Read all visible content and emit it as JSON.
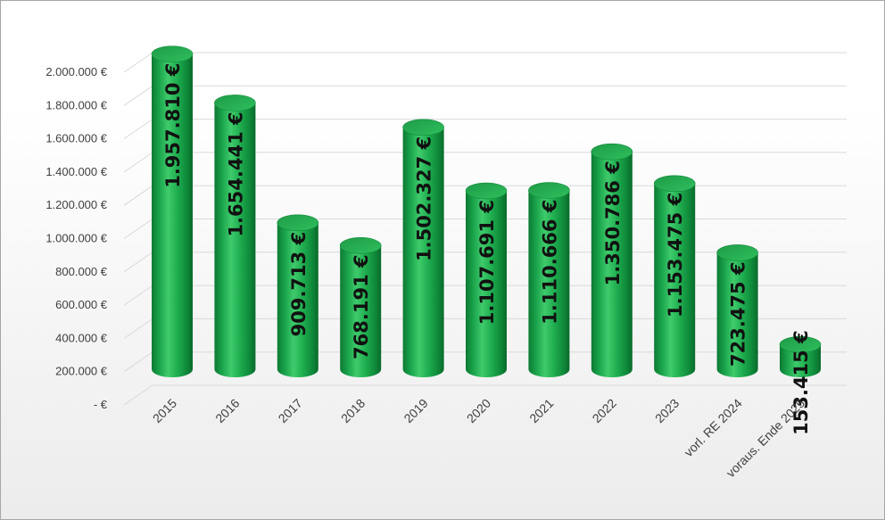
{
  "chart_data": {
    "type": "bar",
    "style": "3d-cylinder",
    "categories": [
      "2015",
      "2016",
      "2017",
      "2018",
      "2019",
      "2020",
      "2021",
      "2022",
      "2023",
      "vorl. RE 2024",
      "voraus. Ende 2025"
    ],
    "values": [
      1957810,
      1654441,
      909713,
      768191,
      1502327,
      1107691,
      1110666,
      1350786,
      1153475,
      723475,
      153415
    ],
    "value_labels": [
      "1.957.810 €",
      "1.654.441 €",
      "909.713 €",
      "768.191 €",
      "1.502.327 €",
      "1.107.691 €",
      "1.110.666 €",
      "1.350.786 €",
      "1.153.475 €",
      "723.475 €",
      "153.415 €"
    ],
    "y_ticks": [
      {
        "value": 0,
        "label": "-  €"
      },
      {
        "value": 200000,
        "label": "200.000 €"
      },
      {
        "value": 400000,
        "label": "400.000 €"
      },
      {
        "value": 600000,
        "label": "600.000 €"
      },
      {
        "value": 800000,
        "label": "800.000 €"
      },
      {
        "value": 1000000,
        "label": "1.000.000 €"
      },
      {
        "value": 1200000,
        "label": "1.200.000 €"
      },
      {
        "value": 1400000,
        "label": "1.400.000 €"
      },
      {
        "value": 1600000,
        "label": "1.600.000 €"
      },
      {
        "value": 1800000,
        "label": "1.800.000 €"
      },
      {
        "value": 2000000,
        "label": "2.000.000 €"
      }
    ],
    "ylim": [
      0,
      2000000
    ],
    "grid": true,
    "legend": "none",
    "colors": {
      "bar": "#00b04f",
      "bar_dark": "#0b6b2d",
      "bar_top": "#23a94f",
      "grid": "#d9d9d9"
    }
  }
}
